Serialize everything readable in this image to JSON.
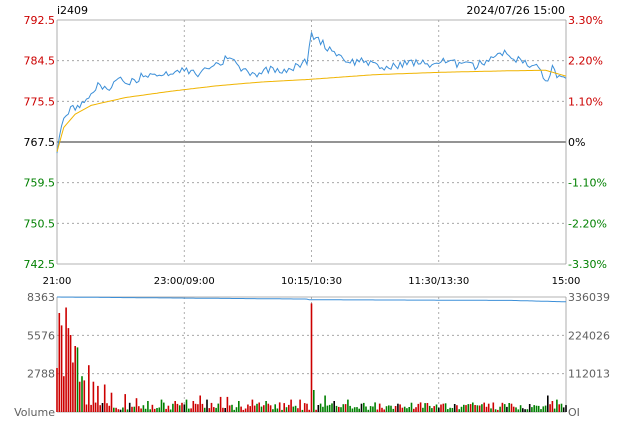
{
  "header": {
    "symbol": "i2409",
    "datetime": "2024/07/26 15:00"
  },
  "colors": {
    "price_line": "#3c8fd8",
    "avg_line": "#f0b400",
    "up": "#cc0000",
    "down": "#008000",
    "flat": "#000000",
    "grid": "#9a9a9a",
    "oi_line": "#3c8fd8"
  },
  "chart_data": [
    {
      "type": "line",
      "name": "intraday price",
      "y_ticks_left": [
        "792.5",
        "784.5",
        "775.5",
        "767.5",
        "759.5",
        "750.5",
        "742.5"
      ],
      "y_ticks_right": [
        "3.30%",
        "2.20%",
        "1.10%",
        "0%",
        "-1.10%",
        "-2.20%",
        "-3.30%"
      ],
      "x_ticks": [
        "21:00",
        "23:00/09:00",
        "10:15/10:30",
        "11:30/13:30",
        "15:00"
      ],
      "ylim": [
        742.5,
        792.5
      ],
      "reference": 767.5,
      "n_points": 225,
      "price_anchors": [
        [
          0,
          765.2
        ],
        [
          1,
          768.5
        ],
        [
          3,
          773.0
        ],
        [
          6,
          774.3
        ],
        [
          10,
          775.0
        ],
        [
          14,
          776.0
        ],
        [
          18,
          779.0
        ],
        [
          22,
          778.3
        ],
        [
          27,
          780.5
        ],
        [
          32,
          779.6
        ],
        [
          38,
          781.2
        ],
        [
          44,
          780.6
        ],
        [
          50,
          781.7
        ],
        [
          56,
          782.1
        ],
        [
          62,
          781.4
        ],
        [
          68,
          783.2
        ],
        [
          72,
          783.6
        ],
        [
          76,
          785.4
        ],
        [
          80,
          782.6
        ],
        [
          84,
          782.0
        ],
        [
          88,
          781.5
        ],
        [
          94,
          782.6
        ],
        [
          100,
          782.3
        ],
        [
          106,
          783.0
        ],
        [
          110,
          784.0
        ],
        [
          112,
          789.4
        ],
        [
          115,
          788.7
        ],
        [
          118,
          787.2
        ],
        [
          122,
          786.1
        ],
        [
          126,
          784.6
        ],
        [
          130,
          783.9
        ],
        [
          135,
          784.3
        ],
        [
          140,
          783.0
        ],
        [
          146,
          782.6
        ],
        [
          152,
          783.6
        ],
        [
          158,
          783.8
        ],
        [
          164,
          783.4
        ],
        [
          170,
          784.0
        ],
        [
          176,
          783.5
        ],
        [
          180,
          784.6
        ],
        [
          184,
          782.9
        ],
        [
          188,
          784.0
        ],
        [
          192,
          785.2
        ],
        [
          196,
          785.9
        ],
        [
          200,
          784.9
        ],
        [
          204,
          784.2
        ],
        [
          208,
          783.0
        ],
        [
          212,
          782.9
        ],
        [
          216,
          779.3
        ],
        [
          218,
          783.0
        ],
        [
          220,
          781.4
        ],
        [
          224,
          779.8
        ]
      ],
      "avg_anchors": [
        [
          0,
          765.5
        ],
        [
          3,
          770.5
        ],
        [
          8,
          773.2
        ],
        [
          15,
          775.0
        ],
        [
          30,
          776.6
        ],
        [
          50,
          777.9
        ],
        [
          70,
          779.0
        ],
        [
          90,
          779.8
        ],
        [
          110,
          780.3
        ],
        [
          140,
          781.3
        ],
        [
          170,
          781.8
        ],
        [
          200,
          782.1
        ],
        [
          215,
          782.2
        ],
        [
          224,
          781.0
        ]
      ]
    },
    {
      "type": "bar",
      "name": "Volume",
      "y_ticks_left": [
        "8363",
        "5576",
        "2788",
        "Volume"
      ],
      "y_ticks_right": [
        "336039",
        "224026",
        "112013",
        "OI"
      ],
      "vmax": 8363,
      "spikes": [
        [
          0,
          3200
        ],
        [
          1,
          7200
        ],
        [
          2,
          6300
        ],
        [
          3,
          2600
        ],
        [
          4,
          7600
        ],
        [
          5,
          6100
        ],
        [
          6,
          5600
        ],
        [
          7,
          3600
        ],
        [
          8,
          4800
        ],
        [
          9,
          4700
        ],
        [
          10,
          2200
        ],
        [
          11,
          2600
        ],
        [
          12,
          2300
        ],
        [
          14,
          3400
        ],
        [
          16,
          2200
        ],
        [
          18,
          1900
        ],
        [
          21,
          2000
        ],
        [
          24,
          1400
        ],
        [
          30,
          1300
        ],
        [
          35,
          1000
        ],
        [
          40,
          800
        ],
        [
          46,
          900
        ],
        [
          52,
          800
        ],
        [
          57,
          900
        ],
        [
          60,
          800
        ],
        [
          63,
          1200
        ],
        [
          66,
          900
        ],
        [
          72,
          1100
        ],
        [
          75,
          1100
        ],
        [
          80,
          800
        ],
        [
          86,
          900
        ],
        [
          92,
          800
        ],
        [
          98,
          700
        ],
        [
          103,
          900
        ],
        [
          107,
          900
        ],
        [
          110,
          600
        ],
        [
          112,
          7900
        ],
        [
          113,
          1600
        ],
        [
          118,
          1200
        ],
        [
          122,
          800
        ],
        [
          128,
          900
        ],
        [
          134,
          600
        ],
        [
          140,
          700
        ],
        [
          150,
          600
        ],
        [
          160,
          700
        ],
        [
          170,
          600
        ],
        [
          180,
          500
        ],
        [
          190,
          600
        ],
        [
          200,
          600
        ],
        [
          210,
          500
        ],
        [
          216,
          1200
        ],
        [
          218,
          800
        ],
        [
          220,
          900
        ],
        [
          222,
          600
        ],
        [
          224,
          500
        ]
      ],
      "oi_anchors": [
        [
          0,
          336000
        ],
        [
          110,
          330000
        ],
        [
          111,
          328000
        ],
        [
          160,
          327000
        ],
        [
          200,
          326000
        ],
        [
          224,
          322000
        ]
      ]
    }
  ]
}
